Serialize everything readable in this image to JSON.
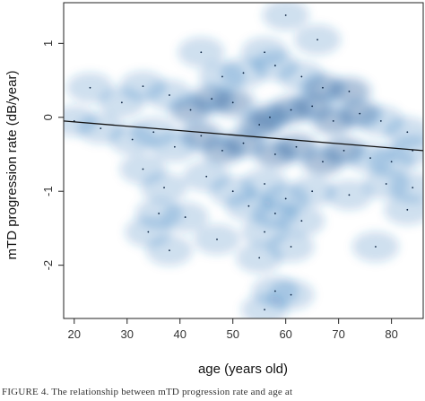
{
  "chart_data": {
    "type": "scatter",
    "style": "smoothed density scatter plot with linear regression line",
    "xlabel": "age (years old)",
    "ylabel": "mTD progression rate (dB/year)",
    "xlim": [
      18,
      86
    ],
    "ylim": [
      -2.72,
      1.55
    ],
    "xticks": [
      "20",
      "30",
      "40",
      "50",
      "60",
      "70",
      "80"
    ],
    "yticks": [
      "1",
      "0",
      "-1",
      "-2"
    ],
    "density_color": "#1f6fb5",
    "regression_color": "#111111",
    "regression_line": {
      "x": [
        18,
        86
      ],
      "y": [
        -0.05,
        -0.45
      ]
    },
    "points": [
      {
        "x": 60,
        "y": 1.38
      },
      {
        "x": 44,
        "y": 0.88
      },
      {
        "x": 56,
        "y": 0.88
      },
      {
        "x": 66,
        "y": 1.05
      },
      {
        "x": 23,
        "y": 0.4
      },
      {
        "x": 33,
        "y": 0.42
      },
      {
        "x": 38,
        "y": 0.3
      },
      {
        "x": 48,
        "y": 0.55
      },
      {
        "x": 52,
        "y": 0.6
      },
      {
        "x": 58,
        "y": 0.7
      },
      {
        "x": 63,
        "y": 0.55
      },
      {
        "x": 67,
        "y": 0.4
      },
      {
        "x": 72,
        "y": 0.35
      },
      {
        "x": 29,
        "y": 0.2
      },
      {
        "x": 42,
        "y": 0.1
      },
      {
        "x": 46,
        "y": 0.25
      },
      {
        "x": 50,
        "y": 0.2
      },
      {
        "x": 55,
        "y": -0.1
      },
      {
        "x": 57,
        "y": 0.0
      },
      {
        "x": 61,
        "y": 0.1
      },
      {
        "x": 65,
        "y": 0.15
      },
      {
        "x": 69,
        "y": -0.05
      },
      {
        "x": 74,
        "y": 0.05
      },
      {
        "x": 78,
        "y": -0.05
      },
      {
        "x": 83,
        "y": -0.2
      },
      {
        "x": 20,
        "y": -0.05
      },
      {
        "x": 25,
        "y": -0.15
      },
      {
        "x": 31,
        "y": -0.3
      },
      {
        "x": 35,
        "y": -0.2
      },
      {
        "x": 39,
        "y": -0.4
      },
      {
        "x": 44,
        "y": -0.25
      },
      {
        "x": 48,
        "y": -0.45
      },
      {
        "x": 52,
        "y": -0.35
      },
      {
        "x": 58,
        "y": -0.5
      },
      {
        "x": 62,
        "y": -0.4
      },
      {
        "x": 67,
        "y": -0.6
      },
      {
        "x": 71,
        "y": -0.45
      },
      {
        "x": 76,
        "y": -0.55
      },
      {
        "x": 80,
        "y": -0.6
      },
      {
        "x": 84,
        "y": -0.45
      },
      {
        "x": 33,
        "y": -0.7
      },
      {
        "x": 37,
        "y": -0.95
      },
      {
        "x": 45,
        "y": -0.8
      },
      {
        "x": 50,
        "y": -1.0
      },
      {
        "x": 56,
        "y": -0.9
      },
      {
        "x": 60,
        "y": -1.1
      },
      {
        "x": 65,
        "y": -1.0
      },
      {
        "x": 72,
        "y": -1.05
      },
      {
        "x": 79,
        "y": -0.9
      },
      {
        "x": 84,
        "y": -0.95
      },
      {
        "x": 36,
        "y": -1.3
      },
      {
        "x": 41,
        "y": -1.35
      },
      {
        "x": 53,
        "y": -1.2
      },
      {
        "x": 58,
        "y": -1.3
      },
      {
        "x": 63,
        "y": -1.4
      },
      {
        "x": 83,
        "y": -1.25
      },
      {
        "x": 34,
        "y": -1.55
      },
      {
        "x": 47,
        "y": -1.65
      },
      {
        "x": 56,
        "y": -1.55
      },
      {
        "x": 61,
        "y": -1.75
      },
      {
        "x": 38,
        "y": -1.8
      },
      {
        "x": 77,
        "y": -1.75
      },
      {
        "x": 55,
        "y": -1.9
      },
      {
        "x": 58,
        "y": -2.35
      },
      {
        "x": 61,
        "y": -2.4
      },
      {
        "x": 56,
        "y": -2.6
      }
    ]
  },
  "caption": "FIGURE 4.  The relationship between mTD progression rate and age at"
}
